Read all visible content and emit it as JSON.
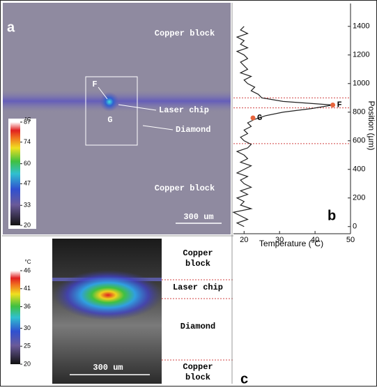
{
  "panel_a": {
    "label": "a",
    "top_region": "Copper block",
    "bottom_region": "Copper block",
    "laser_label": "Laser chip",
    "diamond_label": "Diamond",
    "point_f": "F",
    "point_g": "G",
    "scale_bar": "300 um",
    "colorbar": {
      "unit": "°C",
      "lim": [
        20,
        87
      ],
      "ticks": [
        20,
        33,
        47,
        60,
        74,
        87
      ]
    }
  },
  "chart_data": {
    "type": "line",
    "label": "b",
    "xlabel": "Temperature (°C)",
    "ylabel": "Position (µm)",
    "xlim": [
      17,
      50
    ],
    "xticks": [
      20,
      30,
      40,
      50
    ],
    "ylim": [
      -50,
      1560
    ],
    "yticks": [
      0,
      200,
      400,
      600,
      800,
      1000,
      1200,
      1400
    ],
    "color": "#222222",
    "boundaries": [
      900,
      830,
      580
    ],
    "boundary_color": "#d04040",
    "temperature": [
      20,
      18,
      21,
      19,
      17,
      22,
      19,
      20,
      18,
      21,
      19,
      22,
      20,
      19,
      21,
      18,
      20,
      22,
      19,
      21,
      20,
      18,
      21,
      22,
      20,
      19,
      21,
      20,
      22,
      21,
      23,
      26,
      31,
      39,
      45,
      31,
      25,
      24,
      22,
      23,
      21,
      20,
      22,
      19,
      21,
      20,
      19,
      21,
      20,
      18,
      21,
      19,
      20,
      18,
      21,
      19,
      20
    ],
    "position": [
      0,
      25,
      50,
      75,
      100,
      125,
      150,
      175,
      200,
      225,
      250,
      275,
      300,
      325,
      350,
      375,
      400,
      425,
      450,
      475,
      500,
      525,
      550,
      575,
      600,
      625,
      650,
      675,
      700,
      725,
      750,
      775,
      800,
      825,
      850,
      875,
      900,
      925,
      950,
      975,
      1000,
      1025,
      1050,
      1075,
      1100,
      1125,
      1150,
      1175,
      1200,
      1225,
      1250,
      1275,
      1300,
      1325,
      1350,
      1375,
      1400
    ],
    "points": [
      {
        "label": "F",
        "temperature": 45,
        "position": 850
      },
      {
        "label": "G",
        "temperature": 22.5,
        "position": 760
      }
    ],
    "point_color": "#e8643c"
  },
  "panel_c": {
    "label": "c",
    "regions": [
      "Copper block",
      "Laser chip",
      "Diamond",
      "Copper block"
    ],
    "scale_bar": "300 um",
    "colorbar": {
      "unit": "°C",
      "lim": [
        20,
        46
      ],
      "ticks": [
        20,
        25,
        30,
        36,
        41,
        46
      ]
    }
  }
}
